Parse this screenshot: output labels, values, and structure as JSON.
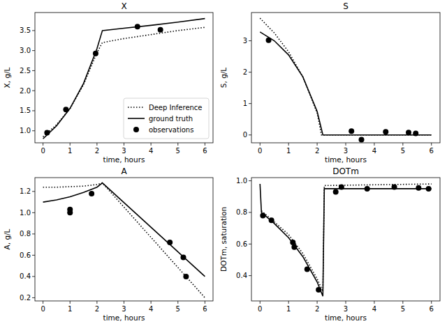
{
  "chart_data": [
    {
      "type": "line",
      "title": "X",
      "x_label": "time, hours",
      "y_label": "X, g/L",
      "xlim": [
        -0.3,
        6.3
      ],
      "xticks": [
        0,
        1,
        2,
        3,
        4,
        5,
        6
      ],
      "ylim": [
        0.7,
        3.95
      ],
      "yticks": [
        {
          "value": 1.0,
          "label": "1.0"
        },
        1.5,
        {
          "value": 2.0,
          "label": "2.0"
        },
        2.5,
        {
          "value": 3.0,
          "label": "3.0"
        },
        3.5
      ],
      "legend": "lower right",
      "series": [
        {
          "name": "Deep Inference",
          "type": "line",
          "line_style": "dotted",
          "color": "#000000",
          "x": [
            0,
            0.5,
            1,
            1.5,
            2,
            2.2,
            3,
            4,
            5,
            6
          ],
          "values": [
            0.85,
            1.15,
            1.55,
            2.15,
            2.95,
            3.2,
            3.3,
            3.4,
            3.5,
            3.58
          ]
        },
        {
          "name": "ground truth",
          "type": "line",
          "line_style": "solid",
          "color": "#000000",
          "x": [
            0,
            0.5,
            1,
            1.5,
            2,
            2.2,
            3,
            4,
            5,
            6
          ],
          "values": [
            0.8,
            1.12,
            1.56,
            2.18,
            3.05,
            3.5,
            3.56,
            3.63,
            3.71,
            3.8
          ]
        },
        {
          "name": "observations",
          "type": "scatter",
          "marker": "circle",
          "color": "#000000",
          "x": [
            0.15,
            0.85,
            1.95,
            3.5,
            4.35
          ],
          "values": [
            0.95,
            1.53,
            2.93,
            3.6,
            3.52
          ]
        }
      ]
    },
    {
      "type": "line",
      "title": "S",
      "x_label": "time, hours",
      "y_label": "S, g/L",
      "xlim": [
        -0.3,
        6.3
      ],
      "xticks": [
        0,
        1,
        2,
        3,
        4,
        5,
        6
      ],
      "ylim": [
        -0.25,
        3.9
      ],
      "yticks": [
        0,
        1,
        2,
        3
      ],
      "series": [
        {
          "type": "line",
          "line_style": "dotted",
          "color": "#000000",
          "x": [
            0,
            0.5,
            1,
            1.5,
            2,
            2.15,
            6
          ],
          "values": [
            3.72,
            3.25,
            2.65,
            1.85,
            0.7,
            0,
            0
          ]
        },
        {
          "type": "line",
          "line_style": "solid",
          "color": "#000000",
          "x": [
            0,
            0.5,
            1,
            1.5,
            2,
            2.2,
            6
          ],
          "values": [
            3.28,
            3.0,
            2.55,
            1.85,
            0.75,
            0,
            0
          ]
        },
        {
          "type": "scatter",
          "marker": "circle",
          "color": "#000000",
          "x": [
            0.3,
            3.2,
            3.55,
            4.4,
            5.2,
            5.45
          ],
          "values": [
            3.02,
            0.12,
            -0.15,
            0.1,
            0.08,
            0.05
          ]
        }
      ]
    },
    {
      "type": "line",
      "title": "A",
      "x_label": "time, hours",
      "y_label": "A, g/L",
      "xlim": [
        -0.3,
        6.3
      ],
      "xticks": [
        0,
        1,
        2,
        3,
        4,
        5,
        6
      ],
      "ylim": [
        0.17,
        1.33
      ],
      "yticks": [
        0.2,
        0.4,
        0.6,
        0.8,
        {
          "value": 1.0,
          "label": "1.0"
        },
        1.2
      ],
      "series": [
        {
          "type": "line",
          "line_style": "dotted",
          "color": "#000000",
          "x": [
            0,
            0.5,
            1,
            1.5,
            2,
            2.2,
            6
          ],
          "values": [
            1.24,
            1.24,
            1.245,
            1.25,
            1.265,
            1.28,
            0.2
          ]
        },
        {
          "type": "line",
          "line_style": "solid",
          "color": "#000000",
          "x": [
            0,
            0.5,
            1,
            1.5,
            2,
            2.2,
            6
          ],
          "values": [
            1.1,
            1.12,
            1.15,
            1.19,
            1.24,
            1.28,
            0.4
          ]
        },
        {
          "type": "scatter",
          "marker": "circle",
          "color": "#000000",
          "x": [
            1.0,
            1.0,
            1.8,
            4.7,
            5.2,
            5.3
          ],
          "values": [
            1.03,
            1.0,
            1.18,
            0.72,
            0.58,
            0.4
          ]
        }
      ]
    },
    {
      "type": "line",
      "title": "DOTm",
      "x_label": "time, hours",
      "y_label": "DOTm, saturation",
      "xlim": [
        -0.3,
        6.3
      ],
      "xticks": [
        0,
        1,
        2,
        3,
        4,
        5,
        6
      ],
      "ylim": [
        0.24,
        1.02
      ],
      "yticks": [
        0.4,
        0.6,
        0.8,
        {
          "value": 1.0,
          "label": "1.0"
        }
      ],
      "series": [
        {
          "type": "line",
          "line_style": "dotted",
          "color": "#000000",
          "x": [
            0,
            0.05,
            0.5,
            1,
            1.5,
            2,
            2.2,
            2.25,
            6
          ],
          "values": [
            null,
            0.81,
            0.74,
            0.66,
            0.54,
            0.38,
            0.3,
            0.97,
            0.98
          ]
        },
        {
          "type": "line",
          "line_style": "solid",
          "color": "#000000",
          "x": [
            0,
            0.05,
            0.5,
            1,
            1.5,
            2,
            2.2,
            2.25,
            6
          ],
          "values": [
            0.98,
            0.8,
            0.73,
            0.64,
            0.52,
            0.36,
            0.27,
            0.95,
            0.95
          ]
        },
        {
          "type": "scatter",
          "marker": "circle",
          "color": "#000000",
          "x": [
            0.1,
            0.4,
            1.15,
            1.2,
            1.65,
            2.05,
            2.65,
            2.85,
            3.75,
            4.7,
            5.55,
            5.9
          ],
          "values": [
            0.78,
            0.75,
            0.61,
            0.58,
            0.44,
            0.31,
            0.93,
            0.96,
            0.95,
            0.96,
            0.955,
            0.95
          ]
        }
      ]
    }
  ]
}
